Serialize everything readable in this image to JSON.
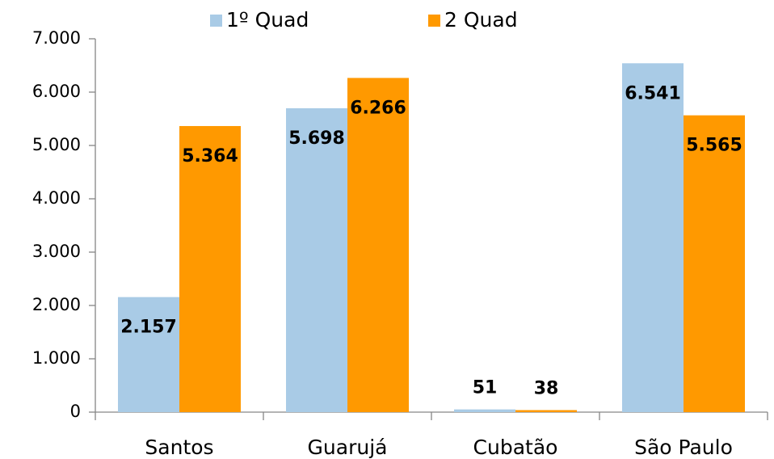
{
  "chart_data": {
    "type": "bar",
    "categories": [
      "Santos",
      "Guarujá",
      "Cubatão",
      "São Paulo"
    ],
    "series": [
      {
        "name": "1º Quad",
        "color": "#a9cbe6",
        "values": [
          2157,
          5698,
          51,
          6541
        ],
        "value_labels": [
          "2.157",
          "5.698",
          "51",
          "6.541"
        ]
      },
      {
        "name": "2 Quad",
        "color": "#ff9900",
        "values": [
          5364,
          6266,
          38,
          5565
        ],
        "value_labels": [
          "5.364",
          "6.266",
          "38",
          "5.565"
        ]
      }
    ],
    "ylim": [
      0,
      7000
    ],
    "yticks": [
      0,
      {
        "value": 1000,
        "label": "1.000"
      },
      {
        "value": 2000,
        "label": "2.000"
      },
      {
        "value": 3000,
        "label": "3.000"
      },
      {
        "value": 4000,
        "label": "4.000"
      },
      {
        "value": 5000,
        "label": "5.000"
      },
      {
        "value": 6000,
        "label": "6.000"
      },
      {
        "value": 7000,
        "label": "7.000"
      }
    ],
    "legend": "top"
  }
}
